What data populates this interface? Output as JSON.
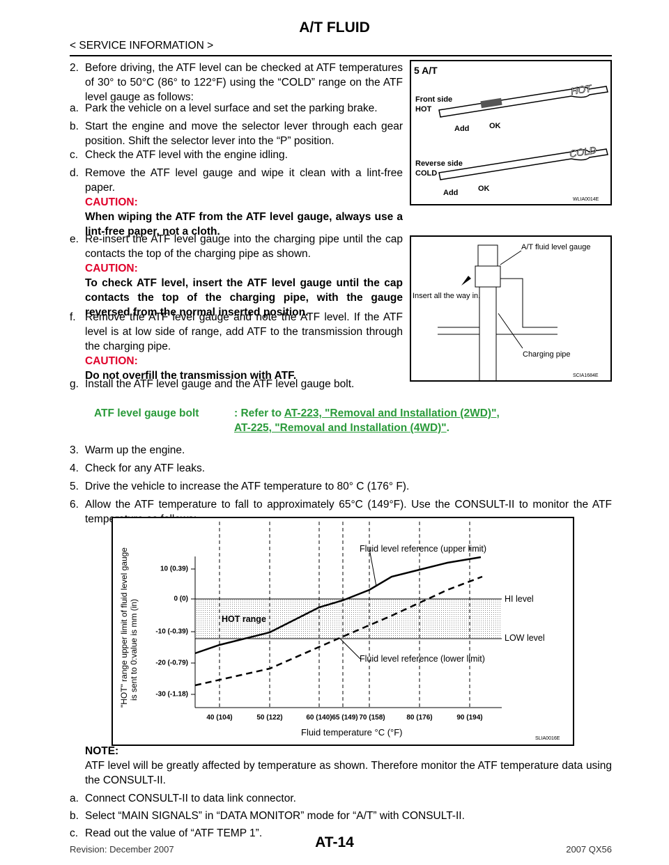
{
  "header": {
    "title": "A/T FLUID",
    "section": "< SERVICE INFORMATION >"
  },
  "procedure": {
    "number": "2.",
    "text": "Before driving, the ATF level can be checked at ATF temperatures of 30° to 50°C (86° to 122°F) using the “COLD” range on the ATF level gauge as follows:",
    "substeps": [
      {
        "label": "a.",
        "text": "Park the vehicle on a level surface and set the parking brake."
      },
      {
        "label": "b.",
        "text": "Start the engine and move the selector lever through each gear position. Shift the selector lever into the “P” position."
      },
      {
        "label": "c.",
        "text": "Check the ATF level with the engine idling."
      },
      {
        "label": "d.",
        "text": "Remove the ATF level gauge and wipe it clean with a lint-free paper.",
        "caution_label": "CAUTION:",
        "caution": "When wiping the ATF from the ATF level gauge, always use a lint-free paper, not a cloth."
      },
      {
        "label": "e.",
        "text": "Re-insert the ATF level gauge into the charging pipe until the cap contacts the top of the charging pipe as shown.",
        "caution_label": "CAUTION:",
        "caution": "To check ATF level, insert the ATF level gauge until the cap contacts the top of the charging pipe, with the gauge reversed from the normal inserted position."
      },
      {
        "label": "f.",
        "text": "Remove the ATF level gauge and note the ATF level. If the ATF level is at low side of range, add ATF to the transmission through the charging pipe.",
        "caution_label": "CAUTION:",
        "caution": "Do not overfill the transmission with ATF."
      },
      {
        "label": "g.",
        "text": "Install the ATF level gauge and the ATF level gauge bolt."
      }
    ]
  },
  "figure1": {
    "labels": [
      "5 A/T",
      "Front side",
      "HOT",
      "Add",
      "OK",
      "HOT",
      "Reverse side",
      "COLD",
      "Add",
      "OK",
      "COLD"
    ],
    "code": "WLIA0014E"
  },
  "figure2": {
    "labels": [
      "A/T fluid level gauge",
      "Insert all the way in.",
      "Charging pipe"
    ],
    "code": "SCIA1684E"
  },
  "reference": {
    "item": "ATF level gauge bolt",
    "prefix": ": Refer to ",
    "links": [
      "AT-223, \"Removal and Installation (2WD)\"",
      "AT-225, \"Removal and Installation (4WD)\""
    ],
    "separator": ",",
    "end": "."
  },
  "steps": [
    {
      "number": "3.",
      "text": "Warm up the engine."
    },
    {
      "number": "4.",
      "text": "Check for any ATF leaks."
    },
    {
      "number": "5.",
      "text": "Drive the vehicle to increase the ATF temperature to 80° C (176° F)."
    },
    {
      "number": "6.",
      "text": "Allow the ATF temperature to fall to approximately 65°C (149°F). Use the CONSULT-II to monitor the ATF temperature as follows:"
    }
  ],
  "figure3": {
    "y_title": [
      "\"HOT\" range upper limit of fluid level gauge",
      "is sent to 0:value is mm (in)"
    ],
    "y_labels": [
      "10 (0.39)",
      "0 (0)",
      "-10 (-0.39)",
      "-20 (-0.79)",
      "-30 (-1.18)"
    ],
    "x_labels": [
      "40 (104)",
      "50 (122)",
      "60 (140)",
      "65 (149)",
      "70 (158)",
      "80 (176)",
      "90 (194)"
    ],
    "x_title": "Fluid temperature °C (°F)",
    "annotations": [
      "Fluid level reference (upper limit)",
      "HI level",
      "HOT range",
      "LOW level",
      "Fluid level reference (lower limit)"
    ],
    "code": "SLIA0016E"
  },
  "note": {
    "label": "NOTE:",
    "text": "ATF level will be greatly affected by temperature as shown. Therefore monitor the ATF temperature data using the CONSULT-II.",
    "substeps": [
      {
        "label": "a.",
        "text": "Connect CONSULT-II to data link connector."
      },
      {
        "label": "b.",
        "text": "Select “MAIN SIGNALS” in “DATA MONITOR” mode for “A/T” with CONSULT-II."
      },
      {
        "label": "c.",
        "text": "Read out the value of “ATF TEMP 1”."
      }
    ]
  },
  "footer": {
    "page": "AT-14",
    "revision": "Revision: December 2007",
    "model": "2007 QX56"
  }
}
